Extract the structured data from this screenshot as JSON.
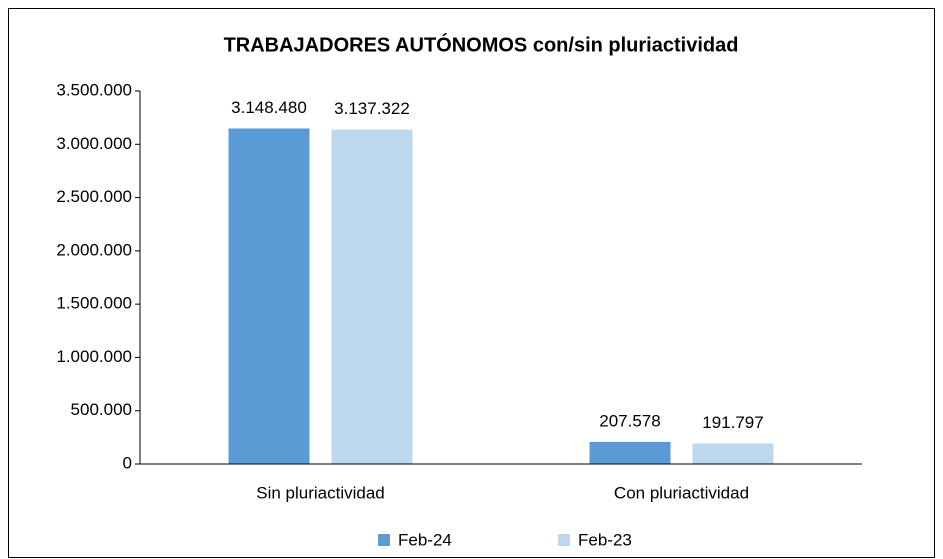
{
  "chart_data": {
    "type": "bar",
    "title": "TRABAJADORES AUTÓNOMOS con/sin pluriactividad",
    "categories": [
      "Sin pluriactividad",
      "Con pluriactividad"
    ],
    "series": [
      {
        "name": "Feb-24",
        "color": "#5b9bd5",
        "values": [
          3148480,
          207578
        ],
        "value_labels": [
          "3.148.480",
          "207.578"
        ]
      },
      {
        "name": "Feb-23",
        "color": "#bdd7ee",
        "values": [
          3137322,
          191797
        ],
        "value_labels": [
          "3.137.322",
          "191.797"
        ]
      }
    ],
    "ylim": [
      0,
      3500000
    ],
    "yticks": [
      0,
      {
        "value": 500000,
        "label": "500.000"
      },
      {
        "value": 1000000,
        "label": "1.000.000"
      },
      {
        "value": 1500000,
        "label": "1.500.000"
      },
      {
        "value": 2000000,
        "label": "2.000.000"
      },
      {
        "value": 2500000,
        "label": "2.500.000"
      },
      {
        "value": 3000000,
        "label": "3.000.000"
      },
      {
        "value": 3500000,
        "label": "3.500.000"
      }
    ],
    "grid": false,
    "legend": "bottom"
  }
}
